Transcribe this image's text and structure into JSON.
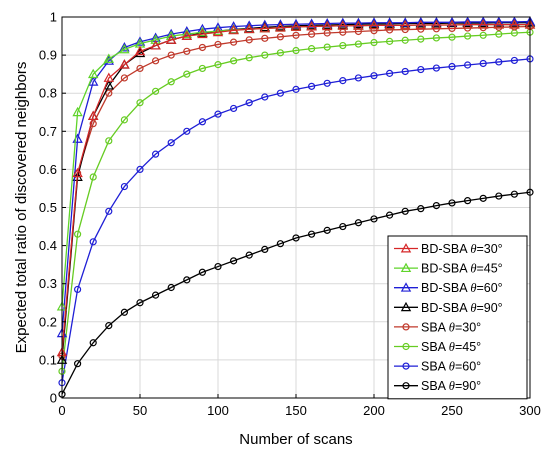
{
  "chart_data": {
    "type": "line",
    "title": "",
    "xlabel": "Number of scans",
    "ylabel": "Expected total ratio of discovered neighbors",
    "xlim": [
      0,
      300
    ],
    "ylim": [
      0,
      1
    ],
    "xticks": [
      0,
      50,
      100,
      150,
      200,
      250,
      300
    ],
    "yticks": [
      0,
      0.1,
      0.2,
      0.3,
      0.4,
      0.5,
      0.6,
      0.7,
      0.8,
      0.9,
      1
    ],
    "grid": true,
    "legend_position": "bottom-right",
    "series": [
      {
        "name_main": "BD-SBA ",
        "name_theta": "θ",
        "name_rest": "=30°",
        "color": "#d62728",
        "marker": "triangle",
        "x": [
          0,
          10,
          20,
          30,
          40,
          50,
          60,
          70,
          80,
          90,
          100,
          110,
          120,
          130,
          140,
          150,
          160,
          170,
          180,
          190,
          200,
          210,
          220,
          230,
          240,
          250,
          260,
          270,
          280,
          290,
          300
        ],
        "y": [
          0.12,
          0.59,
          0.74,
          0.84,
          0.875,
          0.91,
          0.925,
          0.94,
          0.95,
          0.955,
          0.96,
          0.965,
          0.968,
          0.97,
          0.972,
          0.974,
          0.975,
          0.976,
          0.977,
          0.977,
          0.978,
          0.978,
          0.978,
          0.979,
          0.979,
          0.979,
          0.98,
          0.98,
          0.98,
          0.98,
          0.98
        ]
      },
      {
        "name_main": "BD-SBA ",
        "name_theta": "θ",
        "name_rest": "=45°",
        "color": "#5fd42a",
        "marker": "triangle",
        "x": [
          0,
          10,
          20,
          30,
          40,
          50,
          60,
          70,
          80,
          90,
          100,
          110,
          120,
          130,
          140,
          150,
          160,
          170,
          180,
          190,
          200,
          210,
          220,
          230,
          240,
          250,
          260,
          270,
          280,
          290,
          300
        ],
        "y": [
          0.24,
          0.75,
          0.85,
          0.89,
          0.915,
          0.93,
          0.94,
          0.95,
          0.955,
          0.96,
          0.963,
          0.966,
          0.968,
          0.97,
          0.972,
          0.974,
          0.975,
          0.976,
          0.977,
          0.977,
          0.978,
          0.978,
          0.978,
          0.979,
          0.979,
          0.979,
          0.98,
          0.98,
          0.98,
          0.98,
          0.98
        ]
      },
      {
        "name_main": "BD-SBA ",
        "name_theta": "θ",
        "name_rest": "=60°",
        "color": "#1f1fd6",
        "marker": "triangle",
        "x": [
          0,
          10,
          20,
          30,
          40,
          50,
          60,
          70,
          80,
          90,
          100,
          110,
          120,
          130,
          140,
          150,
          160,
          170,
          180,
          190,
          200,
          210,
          220,
          230,
          240,
          250,
          260,
          270,
          280,
          290,
          300
        ],
        "y": [
          0.17,
          0.68,
          0.83,
          0.885,
          0.92,
          0.935,
          0.945,
          0.955,
          0.962,
          0.968,
          0.972,
          0.975,
          0.977,
          0.979,
          0.98,
          0.981,
          0.982,
          0.983,
          0.984,
          0.984,
          0.985,
          0.985,
          0.985,
          0.986,
          0.986,
          0.986,
          0.987,
          0.987,
          0.987,
          0.987,
          0.988
        ]
      },
      {
        "name_main": "BD-SBA ",
        "name_theta": "θ",
        "name_rest": "=90°",
        "color": "#000000",
        "marker": "triangle",
        "x": [
          0,
          10,
          20,
          30,
          40,
          50,
          60,
          70,
          80,
          90,
          100,
          110,
          120,
          130,
          140,
          150,
          160,
          170,
          180,
          190,
          200,
          210,
          220,
          230,
          240,
          250,
          260,
          270,
          280,
          290,
          300
        ],
        "y": [
          0.1,
          0.58,
          0.74,
          0.82,
          0.875,
          0.905,
          0.925,
          0.94,
          0.95,
          0.958,
          0.963,
          0.967,
          0.97,
          0.973,
          0.975,
          0.977,
          0.978,
          0.979,
          0.98,
          0.981,
          0.982,
          0.982,
          0.983,
          0.983,
          0.983,
          0.984,
          0.984,
          0.984,
          0.985,
          0.985,
          0.985
        ]
      },
      {
        "name_main": "SBA ",
        "name_theta": "θ",
        "name_rest": "=30°",
        "color": "#c0392b",
        "marker": "circle",
        "x": [
          0,
          10,
          20,
          30,
          40,
          50,
          60,
          70,
          80,
          90,
          100,
          110,
          120,
          130,
          140,
          150,
          160,
          170,
          180,
          190,
          200,
          210,
          220,
          230,
          240,
          250,
          260,
          270,
          280,
          290,
          300
        ],
        "y": [
          0.11,
          0.59,
          0.72,
          0.8,
          0.84,
          0.865,
          0.885,
          0.9,
          0.91,
          0.92,
          0.928,
          0.934,
          0.94,
          0.944,
          0.948,
          0.952,
          0.955,
          0.958,
          0.96,
          0.962,
          0.964,
          0.966,
          0.967,
          0.968,
          0.969,
          0.97,
          0.971,
          0.972,
          0.973,
          0.974,
          0.975
        ]
      },
      {
        "name_main": "SBA ",
        "name_theta": "θ",
        "name_rest": "=45°",
        "color": "#66cc22",
        "marker": "circle",
        "x": [
          0,
          10,
          20,
          30,
          40,
          50,
          60,
          70,
          80,
          90,
          100,
          110,
          120,
          130,
          140,
          150,
          160,
          170,
          180,
          190,
          200,
          210,
          220,
          230,
          240,
          250,
          260,
          270,
          280,
          290,
          300
        ],
        "y": [
          0.07,
          0.43,
          0.58,
          0.675,
          0.73,
          0.775,
          0.805,
          0.83,
          0.85,
          0.865,
          0.875,
          0.885,
          0.893,
          0.9,
          0.906,
          0.912,
          0.917,
          0.921,
          0.925,
          0.929,
          0.933,
          0.936,
          0.939,
          0.942,
          0.945,
          0.947,
          0.95,
          0.952,
          0.955,
          0.958,
          0.96
        ]
      },
      {
        "name_main": "SBA ",
        "name_theta": "θ",
        "name_rest": "=60°",
        "color": "#1f1fd6",
        "marker": "circle",
        "x": [
          0,
          10,
          20,
          30,
          40,
          50,
          60,
          70,
          80,
          90,
          100,
          110,
          120,
          130,
          140,
          150,
          160,
          170,
          180,
          190,
          200,
          210,
          220,
          230,
          240,
          250,
          260,
          270,
          280,
          290,
          300
        ],
        "y": [
          0.04,
          0.285,
          0.41,
          0.49,
          0.555,
          0.6,
          0.64,
          0.67,
          0.7,
          0.725,
          0.745,
          0.76,
          0.775,
          0.79,
          0.8,
          0.81,
          0.818,
          0.826,
          0.833,
          0.84,
          0.846,
          0.852,
          0.857,
          0.862,
          0.866,
          0.87,
          0.874,
          0.878,
          0.882,
          0.886,
          0.89
        ]
      },
      {
        "name_main": "SBA ",
        "name_theta": "θ",
        "name_rest": "=90°",
        "color": "#000000",
        "marker": "circle",
        "x": [
          0,
          10,
          20,
          30,
          40,
          50,
          60,
          70,
          80,
          90,
          100,
          110,
          120,
          130,
          140,
          150,
          160,
          170,
          180,
          190,
          200,
          210,
          220,
          230,
          240,
          250,
          260,
          270,
          280,
          290,
          300
        ],
        "y": [
          0.01,
          0.09,
          0.145,
          0.19,
          0.225,
          0.25,
          0.27,
          0.29,
          0.31,
          0.33,
          0.345,
          0.36,
          0.375,
          0.39,
          0.405,
          0.42,
          0.43,
          0.44,
          0.45,
          0.46,
          0.47,
          0.48,
          0.49,
          0.497,
          0.505,
          0.512,
          0.518,
          0.524,
          0.53,
          0.535,
          0.54
        ]
      }
    ]
  }
}
